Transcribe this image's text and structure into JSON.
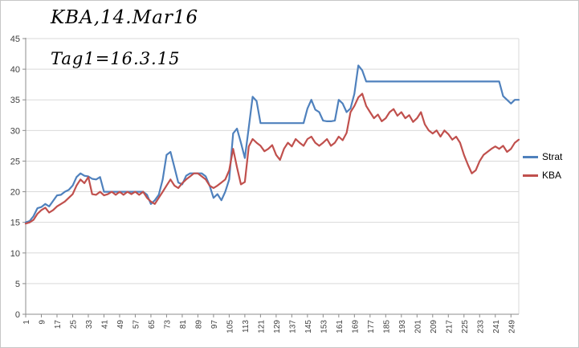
{
  "colors": {
    "strat": "#4F81BD",
    "kba": "#C0504D",
    "gridline": "#D9D9D9",
    "axis": "#8C8C8C",
    "tick_text": "#3F3F3F"
  },
  "legend": {
    "items": [
      {
        "label": "Strat",
        "color": "#4F81BD"
      },
      {
        "label": "KBA",
        "color": "#C0504D"
      }
    ]
  },
  "chart_data": {
    "type": "line",
    "title": "KBA,14.Mar16",
    "annotation": "Tag1=16.3.15",
    "xlabel": "",
    "ylabel": "",
    "ylim": [
      0,
      45
    ],
    "y_ticks": [
      0,
      5,
      10,
      15,
      20,
      25,
      30,
      35,
      40,
      45
    ],
    "x_start": 1,
    "x_step": 2,
    "x_end": 253,
    "x_tick_labels": [
      "1",
      "9",
      "17",
      "25",
      "33",
      "41",
      "49",
      "57",
      "65",
      "73",
      "81",
      "89",
      "97",
      "105",
      "113",
      "121",
      "129",
      "137",
      "145",
      "153",
      "161",
      "169",
      "177",
      "185",
      "193",
      "201",
      "209",
      "217",
      "225",
      "233",
      "241",
      "249"
    ],
    "grid": "horizontal",
    "legend_position": "right",
    "series": [
      {
        "name": "Strat",
        "color": "#4F81BD",
        "values": [
          15,
          15.2,
          16,
          17.3,
          17.5,
          18,
          17.6,
          18.5,
          19.4,
          19.5,
          20,
          20.3,
          21,
          22.4,
          23,
          22.6,
          22.5,
          22.1,
          22,
          22.4,
          20,
          20,
          20,
          20,
          20,
          20,
          20,
          20,
          20,
          20,
          20,
          19.5,
          18,
          18.6,
          19.5,
          22,
          26,
          26.5,
          24,
          21.5,
          21.2,
          22.6,
          23,
          23,
          23,
          23,
          22.5,
          21,
          19,
          19.6,
          18.6,
          20,
          22,
          29.5,
          30.3,
          28,
          25.5,
          30.5,
          35.5,
          34.8,
          31.2,
          31.2,
          31.2,
          31.2,
          31.2,
          31.2,
          31.2,
          31.2,
          31.2,
          31.2,
          31.2,
          31.2,
          33.6,
          35,
          33.4,
          33,
          31.6,
          31.5,
          31.5,
          31.6,
          35,
          34.4,
          33,
          33.6,
          36,
          40.6,
          39.8,
          38,
          38,
          38,
          38,
          38,
          38,
          38,
          38,
          38,
          38,
          38,
          38,
          38,
          38,
          38,
          38,
          38,
          38,
          38,
          38,
          38,
          38,
          38,
          38,
          38,
          38,
          38,
          38,
          38,
          38,
          38,
          38,
          38,
          38,
          38,
          35.6,
          35,
          34.4,
          35,
          35
        ]
      },
      {
        "name": "KBA",
        "color": "#C0504D",
        "values": [
          14.8,
          15,
          15.4,
          16.4,
          17,
          17.4,
          16.6,
          17,
          17.6,
          18,
          18.4,
          19,
          19.6,
          21,
          22,
          21.4,
          22.4,
          19.6,
          19.5,
          20,
          19.4,
          19.6,
          20,
          19.5,
          20,
          19.5,
          20,
          19.6,
          20,
          19.5,
          20,
          19,
          18.4,
          18,
          19,
          20,
          21,
          22,
          21,
          20.6,
          21.4,
          22,
          22.5,
          23,
          23,
          22.5,
          22,
          21,
          20.6,
          21,
          21.5,
          22,
          23.5,
          27,
          24,
          21.2,
          21.6,
          27.4,
          28.6,
          28,
          27.5,
          26.6,
          27,
          27.6,
          26,
          25.2,
          27,
          28,
          27.4,
          28.6,
          28,
          27.5,
          28.6,
          29,
          28,
          27.5,
          28,
          28.6,
          27.5,
          28,
          29,
          28.4,
          29.6,
          33,
          34,
          35.4,
          36,
          34,
          33,
          32,
          32.6,
          31.5,
          32,
          33,
          33.5,
          32.4,
          33,
          32,
          32.5,
          31.4,
          32,
          33,
          31,
          30,
          29.5,
          30,
          29,
          30,
          29.4,
          28.5,
          29,
          28,
          26,
          24.4,
          23,
          23.5,
          25,
          26,
          26.5,
          27,
          27.4,
          27,
          27.5,
          26.5,
          27,
          28,
          28.5
        ]
      }
    ]
  }
}
